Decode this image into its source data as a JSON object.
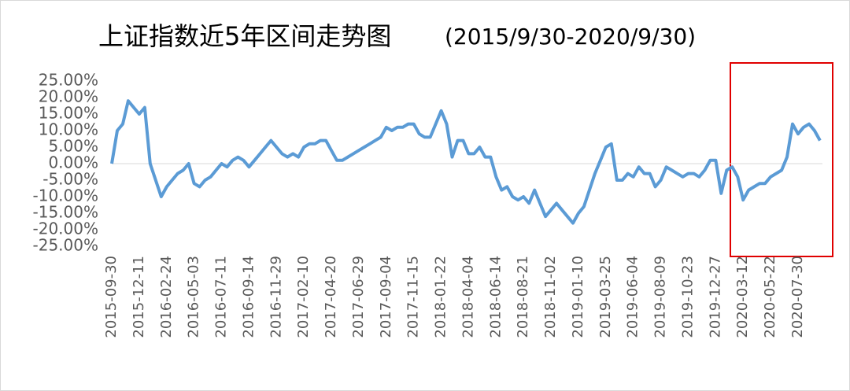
{
  "chart_data": {
    "type": "line",
    "title": "上证指数近5年区间走势图",
    "subtitle": "(2015/9/30-2020/9/30)",
    "categories": [
      "2015-09-30",
      null,
      null,
      null,
      null,
      "2015-12-11",
      null,
      null,
      null,
      null,
      "2016-02-24",
      null,
      null,
      null,
      null,
      "2016-05-03",
      null,
      null,
      null,
      null,
      "2016-07-11",
      null,
      null,
      null,
      null,
      "2016-09-14",
      null,
      null,
      null,
      null,
      "2016-11-29",
      null,
      null,
      null,
      null,
      "2017-02-10",
      null,
      null,
      null,
      null,
      "2017-04-20",
      null,
      null,
      null,
      null,
      "2017-06-29",
      null,
      null,
      null,
      null,
      "2017-09-04",
      null,
      null,
      null,
      null,
      "2017-11-15",
      null,
      null,
      null,
      null,
      "2018-01-22",
      null,
      null,
      null,
      null,
      "2018-04-04",
      null,
      null,
      null,
      null,
      "2018-06-14",
      null,
      null,
      null,
      null,
      "2018-08-21",
      null,
      null,
      null,
      null,
      "2018-11-02",
      null,
      null,
      null,
      null,
      "2019-01-10",
      null,
      null,
      null,
      null,
      "2019-03-25",
      null,
      null,
      null,
      null,
      "2019-06-04",
      null,
      null,
      null,
      null,
      "2019-08-09",
      null,
      null,
      null,
      null,
      "2019-10-23",
      null,
      null,
      null,
      null,
      "2019-12-27",
      null,
      null,
      null,
      null,
      "2020-03-12",
      null,
      null,
      null,
      null,
      "2020-05-22",
      null,
      null,
      null,
      null,
      "2020-07-30",
      null,
      null,
      null,
      null
    ],
    "values": [
      0,
      10,
      12,
      19,
      17,
      15,
      17,
      0,
      -5,
      -10,
      -7,
      -5,
      -3,
      -2,
      0,
      -6,
      -7,
      -5,
      -4,
      -2,
      0,
      -1,
      1,
      2,
      1,
      -1,
      1,
      3,
      5,
      7,
      5,
      3,
      2,
      3,
      2,
      5,
      6,
      6,
      7,
      7,
      4,
      1,
      1,
      2,
      3,
      4,
      5,
      6,
      7,
      8,
      11,
      10,
      11,
      11,
      12,
      12,
      9,
      8,
      8,
      12,
      16,
      12,
      2,
      7,
      7,
      3,
      3,
      5,
      2,
      2,
      -4,
      -8,
      -7,
      -10,
      -11,
      -10,
      -12,
      -8,
      -12,
      -16,
      -14,
      -12,
      -14,
      -16,
      -18,
      -15,
      -13,
      -8,
      -3,
      1,
      5,
      6,
      -5,
      -5,
      -3,
      -4,
      -1,
      -3,
      -3,
      -7,
      -5,
      -1,
      -2,
      -3,
      -4,
      -3,
      -3,
      -4,
      -2,
      1,
      1,
      -9,
      -2,
      -1,
      -4,
      -11,
      -8,
      -7,
      -6,
      -6,
      -4,
      -3,
      -2,
      2,
      12,
      9,
      11,
      12,
      10,
      7
    ],
    "color": "#5b9bd5",
    "ylim": [
      -25,
      25
    ],
    "yticks": [
      {
        "value": 25,
        "label": "25.00%"
      },
      {
        "value": 20,
        "label": "20.00%"
      },
      {
        "value": 15,
        "label": "15.00%"
      },
      {
        "value": 10,
        "label": "10.00%"
      },
      {
        "value": 5,
        "label": "5.00%"
      },
      {
        "value": 0,
        "label": "0.00%"
      },
      {
        "value": -5,
        "label": "-5.00%"
      },
      {
        "value": -10,
        "label": "-10.00%"
      },
      {
        "value": -15,
        "label": "-15.00%"
      },
      {
        "value": -20,
        "label": "-20.00%"
      },
      {
        "value": -25,
        "label": "-25.00%"
      }
    ]
  }
}
